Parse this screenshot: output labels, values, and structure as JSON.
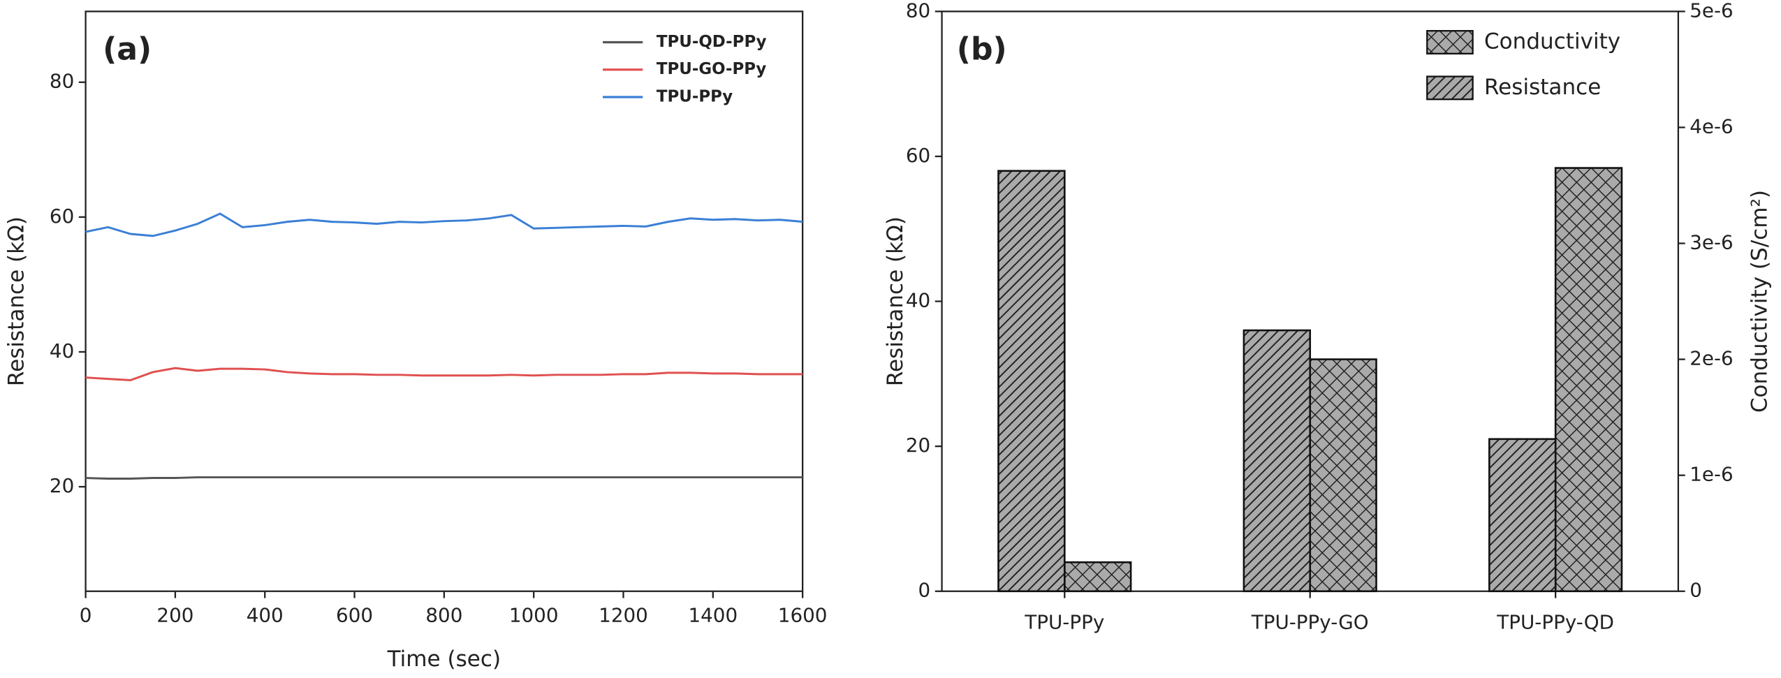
{
  "chart_data": [
    {
      "type": "line",
      "panel_label": "(a)",
      "xlabel": "Time (sec)",
      "ylabel": "Resistance (kΩ)",
      "x": [
        0,
        50,
        100,
        150,
        200,
        250,
        300,
        350,
        400,
        450,
        500,
        550,
        600,
        650,
        700,
        750,
        800,
        850,
        900,
        950,
        1000,
        1050,
        1100,
        1150,
        1200,
        1250,
        1300,
        1350,
        1400,
        1450,
        1500,
        1550,
        1600
      ],
      "xlim": [
        0,
        1600
      ],
      "xticks": [
        0,
        200,
        400,
        600,
        800,
        1000,
        1200,
        1400,
        1600
      ],
      "ylim": [
        4.5,
        90.5
      ],
      "yticks": [
        20,
        40,
        60,
        80
      ],
      "legend": "upper right",
      "series": [
        {
          "name": "TPU-QD-PPy",
          "color": "#555555",
          "values": [
            21.3,
            21.2,
            21.2,
            21.3,
            21.3,
            21.4,
            21.4,
            21.4,
            21.4,
            21.4,
            21.4,
            21.4,
            21.4,
            21.4,
            21.4,
            21.4,
            21.4,
            21.4,
            21.4,
            21.4,
            21.4,
            21.4,
            21.4,
            21.4,
            21.4,
            21.4,
            21.4,
            21.4,
            21.4,
            21.4,
            21.4,
            21.4,
            21.4
          ]
        },
        {
          "name": "TPU-GO-PPy",
          "color": "#e05050",
          "values": [
            36.2,
            36.0,
            35.8,
            37.0,
            37.6,
            37.2,
            37.5,
            37.5,
            37.4,
            37.0,
            36.8,
            36.7,
            36.7,
            36.6,
            36.6,
            36.5,
            36.5,
            36.5,
            36.5,
            36.6,
            36.5,
            36.6,
            36.6,
            36.6,
            36.7,
            36.7,
            36.9,
            36.9,
            36.8,
            36.8,
            36.7,
            36.7,
            36.7
          ]
        },
        {
          "name": "TPU-PPy",
          "color": "#3a7fd5",
          "values": [
            57.8,
            58.5,
            57.5,
            57.2,
            58.0,
            59.0,
            60.5,
            58.5,
            58.8,
            59.3,
            59.6,
            59.3,
            59.2,
            59.0,
            59.3,
            59.2,
            59.4,
            59.5,
            59.8,
            60.3,
            58.3,
            58.4,
            58.5,
            58.6,
            58.7,
            58.6,
            59.3,
            59.8,
            59.6,
            59.7,
            59.5,
            59.6,
            59.3
          ]
        }
      ]
    },
    {
      "type": "bar",
      "panel_label": "(b)",
      "ylabel": "Resistance (kΩ)",
      "y2label": "Conductivity (S/cm²)",
      "categories": [
        "TPU-PPy",
        "TPU-PPy-GO",
        "TPU-PPy-QD"
      ],
      "ylim": [
        0,
        80
      ],
      "yticks": [
        0,
        20,
        40,
        60,
        80
      ],
      "y2lim": [
        0,
        5e-06
      ],
      "y2ticks": [
        0,
        {
          "value": 1e-06,
          "label": "1e-6"
        },
        {
          "value": 2e-06,
          "label": "2e-6"
        },
        {
          "value": 3e-06,
          "label": "3e-6"
        },
        {
          "value": 4e-06,
          "label": "4e-6"
        },
        {
          "value": 5e-06,
          "label": "5e-6"
        }
      ],
      "legend": "upper right",
      "series": [
        {
          "name": "Conductivity",
          "axis": "y2",
          "hatch": "cross",
          "color": "#999999",
          "values": [
            2.5e-07,
            2e-06,
            3.65e-06
          ]
        },
        {
          "name": "Resistance",
          "hatch": "diagonal",
          "color": "#999999",
          "values": [
            58,
            36,
            21
          ]
        }
      ]
    }
  ]
}
